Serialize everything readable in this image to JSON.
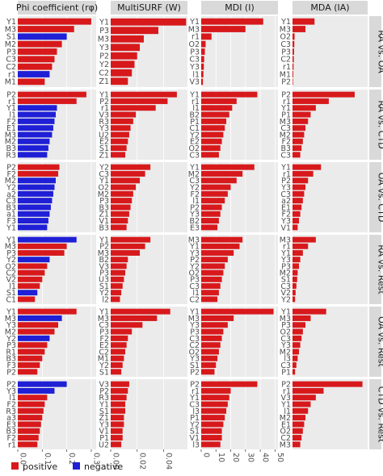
{
  "figure": {
    "legend": [
      {
        "label": "positive",
        "color": "#d7191c"
      },
      {
        "label": "negative",
        "color": "#1f1fd6"
      }
    ],
    "colors": {
      "positive": "#d7191c",
      "negative": "#1f1fd6",
      "panel_bg": "#ebebeb",
      "strip_bg": "#d9d9d9",
      "grid": "#ffffff"
    }
  },
  "chart_data": {
    "type": "bar",
    "orientation": "horizontal",
    "facet_columns": [
      {
        "label": "Phi coefficient (rφ)",
        "xlim": [
          0,
          0.32
        ],
        "ticks": [
          0,
          0.1,
          0.2,
          0.3
        ],
        "tick_labels": [
          "0.0",
          "0.1",
          "0.2",
          "0.3"
        ]
      },
      {
        "label": "MultiSURF (W)",
        "xlim": [
          0,
          0.058
        ],
        "ticks": [
          0,
          0.02,
          0.04
        ],
        "tick_labels": [
          "0.00",
          "0.02",
          "0.04"
        ]
      },
      {
        "label": "MDI (I)",
        "xlim": [
          0,
          52
        ],
        "ticks": [
          0,
          10,
          20,
          30,
          40,
          50
        ],
        "tick_labels": [
          "0",
          "10",
          "20",
          "30",
          "40",
          "50"
        ]
      },
      {
        "label": "MDA (IA)",
        "xlim": [
          0,
          0.29
        ],
        "ticks": [],
        "tick_labels": []
      }
    ],
    "facet_rows": [
      {
        "label": "RA vs. OA"
      },
      {
        "label": "RA vs. CTD"
      },
      {
        "label": "OA vs. CTD"
      },
      {
        "label": "RA vs. Rest"
      },
      {
        "label": "OA vs. Rest"
      },
      {
        "label": "CTD vs. Rest"
      }
    ],
    "panels": [
      [
        {
          "categories": [
            "Y1",
            "M3",
            "S1",
            "M2",
            "P3",
            "C3",
            "C2",
            "r1",
            "M1"
          ],
          "values": [
            0.3,
            0.23,
            0.2,
            0.18,
            0.16,
            0.15,
            0.14,
            0.13,
            0.11
          ],
          "signs": [
            "+",
            "+",
            "-",
            "+",
            "+",
            "+",
            "+",
            "-",
            "+"
          ]
        },
        {
          "categories": [
            "Y1",
            "P3",
            "M3",
            "Y3",
            "P2",
            "Y2",
            "C2",
            "Z1"
          ],
          "values": [
            0.057,
            0.036,
            0.025,
            0.022,
            0.02,
            0.018,
            0.016,
            0.013
          ],
          "signs": [
            "+",
            "+",
            "+",
            "+",
            "+",
            "+",
            "+",
            "+"
          ]
        },
        {
          "categories": [
            "Y1",
            "M3",
            "r1",
            "O2",
            "P3",
            "C3",
            "Y3",
            "l1",
            "V3"
          ],
          "values": [
            42,
            30,
            7,
            3,
            2.5,
            2,
            1.8,
            1.5,
            1.2
          ],
          "signs": [
            "+",
            "+",
            "+",
            "+",
            "+",
            "+",
            "+",
            "+",
            "+"
          ]
        },
        {
          "categories": [
            "Y1",
            "M3",
            "O2",
            "C3",
            "P3",
            "C2",
            "r1",
            "M1",
            "P2"
          ],
          "values": [
            0.085,
            0.05,
            0.008,
            0.007,
            0.006,
            0.005,
            0.004,
            0.003,
            0.002
          ],
          "signs": [
            "+",
            "+",
            "+",
            "+",
            "+",
            "+",
            "+",
            "+",
            "+"
          ]
        }
      ],
      [
        {
          "categories": [
            "P2",
            "r1",
            "Y1",
            "l1",
            "F2",
            "E1",
            "M3",
            "M2",
            "B3",
            "R3"
          ],
          "values": [
            0.28,
            0.24,
            0.16,
            0.155,
            0.15,
            0.145,
            0.14,
            0.13,
            0.125,
            0.12
          ],
          "signs": [
            "+",
            "+",
            "-",
            "-",
            "-",
            "-",
            "-",
            "-",
            "-",
            "-"
          ]
        },
        {
          "categories": [
            "Y1",
            "P2",
            "r1",
            "V3",
            "R3",
            "Y3",
            "U2",
            "E2",
            "S1",
            "Z1"
          ],
          "values": [
            0.05,
            0.043,
            0.034,
            0.019,
            0.017,
            0.015,
            0.014,
            0.013,
            0.012,
            0.011
          ],
          "signs": [
            "+",
            "+",
            "+",
            "+",
            "+",
            "+",
            "+",
            "+",
            "+",
            "+"
          ]
        },
        {
          "categories": [
            "Y1",
            "r1",
            "l1",
            "B2",
            "P1",
            "C1",
            "Y2",
            "E2",
            "O2",
            "C3"
          ],
          "values": [
            38,
            24,
            21,
            19,
            17,
            16,
            15,
            14,
            13,
            12
          ],
          "signs": [
            "+",
            "+",
            "+",
            "+",
            "+",
            "+",
            "+",
            "+",
            "+",
            "+"
          ]
        },
        {
          "categories": [
            "P2",
            "r1",
            "Y1",
            "P1",
            "M3",
            "C3",
            "M2",
            "F2",
            "B3",
            "C3"
          ],
          "values": [
            0.24,
            0.14,
            0.09,
            0.07,
            0.06,
            0.05,
            0.045,
            0.04,
            0.035,
            0.03
          ],
          "signs": [
            "+",
            "+",
            "+",
            "+",
            "+",
            "+",
            "+",
            "+",
            "+",
            "+"
          ]
        }
      ],
      [
        {
          "categories": [
            "P2",
            "F2",
            "M2",
            "Y2",
            "a2",
            "C3",
            "B3",
            "a1",
            "F3",
            "Y1"
          ],
          "values": [
            0.17,
            0.165,
            0.155,
            0.15,
            0.145,
            0.14,
            0.135,
            0.13,
            0.125,
            0.12
          ],
          "signs": [
            "+",
            "+",
            "-",
            "-",
            "-",
            "-",
            "-",
            "-",
            "-",
            "-"
          ]
        },
        {
          "categories": [
            "Y2",
            "C3",
            "Y1",
            "O2",
            "M2",
            "P3",
            "B3",
            "Z1",
            "V1",
            "B3"
          ],
          "values": [
            0.03,
            0.026,
            0.022,
            0.019,
            0.017,
            0.016,
            0.015,
            0.014,
            0.013,
            0.012
          ],
          "signs": [
            "+",
            "+",
            "+",
            "+",
            "+",
            "+",
            "+",
            "+",
            "+",
            "+"
          ]
        },
        {
          "categories": [
            "Y1",
            "M2",
            "C3",
            "Y2",
            "F2",
            "l1",
            "P2",
            "Y3",
            "B2",
            "E3"
          ],
          "values": [
            36,
            28,
            24,
            20,
            18,
            16,
            14,
            13,
            12,
            11
          ],
          "signs": [
            "+",
            "+",
            "+",
            "+",
            "+",
            "+",
            "+",
            "+",
            "+",
            "+"
          ]
        },
        {
          "categories": [
            "Y1",
            "r1",
            "P2",
            "Y3",
            "C3",
            "a2",
            "E1",
            "F2",
            "Y3",
            "V1"
          ],
          "values": [
            0.11,
            0.08,
            0.06,
            0.05,
            0.045,
            0.04,
            0.035,
            0.03,
            0.025,
            0.02
          ],
          "signs": [
            "+",
            "+",
            "+",
            "+",
            "+",
            "+",
            "+",
            "+",
            "+",
            "+"
          ]
        }
      ],
      [
        {
          "categories": [
            "Y1",
            "M3",
            "P3",
            "Y2",
            "O2",
            "C2",
            "V2",
            "l1",
            "S1",
            "C1"
          ],
          "values": [
            0.24,
            0.2,
            0.19,
            0.13,
            0.12,
            0.11,
            0.1,
            0.09,
            0.08,
            0.07
          ],
          "signs": [
            "-",
            "+",
            "+",
            "-",
            "+",
            "+",
            "+",
            "+",
            "-",
            "+"
          ]
        },
        {
          "categories": [
            "Y1",
            "P2",
            "M3",
            "B2",
            "V3",
            "P3",
            "U3",
            "S1",
            "Y2",
            "l2"
          ],
          "values": [
            0.03,
            0.026,
            0.022,
            0.013,
            0.012,
            0.011,
            0.01,
            0.009,
            0.008,
            0.007
          ],
          "signs": [
            "+",
            "+",
            "+",
            "+",
            "+",
            "+",
            "+",
            "+",
            "+",
            "+"
          ]
        },
        {
          "categories": [
            "M3",
            "Y1",
            "Y3",
            "P2",
            "Y2",
            "O2",
            "P3",
            "C3",
            "l1",
            "C2"
          ],
          "values": [
            28,
            26,
            22,
            18,
            16,
            15,
            14,
            13,
            12,
            11
          ],
          "signs": [
            "+",
            "+",
            "+",
            "+",
            "+",
            "+",
            "+",
            "+",
            "+",
            "+"
          ]
        },
        {
          "categories": [
            "M3",
            "r1",
            "Y1",
            "Y3",
            "P3",
            "M2",
            "S1",
            "C3",
            "V2",
            "Y2"
          ],
          "values": [
            0.09,
            0.06,
            0.04,
            0.03,
            0.025,
            0.02,
            0.018,
            0.015,
            0.012,
            0.01
          ],
          "signs": [
            "+",
            "+",
            "+",
            "+",
            "+",
            "+",
            "+",
            "+",
            "+",
            "+"
          ]
        }
      ],
      [
        {
          "categories": [
            "Y1",
            "M3",
            "Y3",
            "M2",
            "Y2",
            "P3",
            "R1",
            "B3",
            "F3",
            "P2"
          ],
          "values": [
            0.24,
            0.18,
            0.165,
            0.15,
            0.13,
            0.12,
            0.11,
            0.1,
            0.09,
            0.08
          ],
          "signs": [
            "+",
            "-",
            "+",
            "+",
            "-",
            "+",
            "+",
            "+",
            "+",
            "+"
          ]
        },
        {
          "categories": [
            "Y1",
            "M3",
            "C3",
            "P3",
            "F2",
            "E2",
            "C2",
            "M1",
            "Y2",
            "S1"
          ],
          "values": [
            0.045,
            0.035,
            0.024,
            0.016,
            0.013,
            0.012,
            0.011,
            0.01,
            0.009,
            0.008
          ],
          "signs": [
            "+",
            "+",
            "+",
            "+",
            "+",
            "+",
            "+",
            "+",
            "+",
            "+"
          ]
        },
        {
          "categories": [
            "Y1",
            "M3",
            "Y3",
            "P3",
            "C3",
            "C2",
            "O2",
            "Y3",
            "S1",
            "P2"
          ],
          "values": [
            49,
            22,
            18,
            15,
            14,
            13,
            12,
            11,
            10,
            9
          ],
          "signs": [
            "+",
            "+",
            "+",
            "+",
            "+",
            "+",
            "+",
            "+",
            "+",
            "+"
          ]
        },
        {
          "categories": [
            "Y1",
            "M3",
            "P3",
            "O2",
            "C3",
            "Y3",
            "M2",
            "l3",
            "C3",
            "P1"
          ],
          "values": [
            0.13,
            0.07,
            0.05,
            0.04,
            0.035,
            0.03,
            0.025,
            0.02,
            0.015,
            0.01
          ],
          "signs": [
            "+",
            "+",
            "+",
            "+",
            "+",
            "+",
            "+",
            "+",
            "+",
            "+"
          ]
        }
      ],
      [
        {
          "categories": [
            "P2",
            "Y3",
            "l1",
            "F2",
            "R3",
            "a3",
            "E3",
            "B3",
            "F2",
            "r1"
          ],
          "values": [
            0.2,
            0.15,
            0.12,
            0.11,
            0.105,
            0.1,
            0.095,
            0.09,
            0.085,
            0.08
          ],
          "signs": [
            "-",
            "-",
            "+",
            "+",
            "+",
            "+",
            "+",
            "+",
            "+",
            "+"
          ]
        },
        {
          "categories": [
            "V3",
            "P2",
            "R3",
            "Y1",
            "S1",
            "Z1",
            "Y3",
            "V1",
            "P1",
            "U2"
          ],
          "values": [
            0.014,
            0.013,
            0.012,
            0.011,
            0.011,
            0.01,
            0.01,
            0.009,
            0.009,
            0.008
          ],
          "signs": [
            "+",
            "+",
            "+",
            "+",
            "+",
            "+",
            "+",
            "+",
            "+",
            "+"
          ]
        },
        {
          "categories": [
            "P2",
            "r1",
            "Y1",
            "C3",
            "l3",
            "P1",
            "Y2",
            "S1",
            "V1",
            "l3"
          ],
          "values": [
            38,
            20,
            19,
            18,
            17,
            16,
            15,
            14,
            14,
            13
          ],
          "signs": [
            "+",
            "+",
            "+",
            "+",
            "+",
            "+",
            "+",
            "+",
            "+",
            "+"
          ]
        },
        {
          "categories": [
            "P2",
            "r1",
            "V3",
            "Y1",
            "l1",
            "M2",
            "E1",
            "O2",
            "C2",
            "M3"
          ],
          "values": [
            0.27,
            0.12,
            0.09,
            0.07,
            0.06,
            0.05,
            0.045,
            0.04,
            0.035,
            0.03
          ],
          "signs": [
            "+",
            "+",
            "+",
            "+",
            "+",
            "+",
            "+",
            "+",
            "+",
            "+"
          ]
        }
      ]
    ]
  }
}
